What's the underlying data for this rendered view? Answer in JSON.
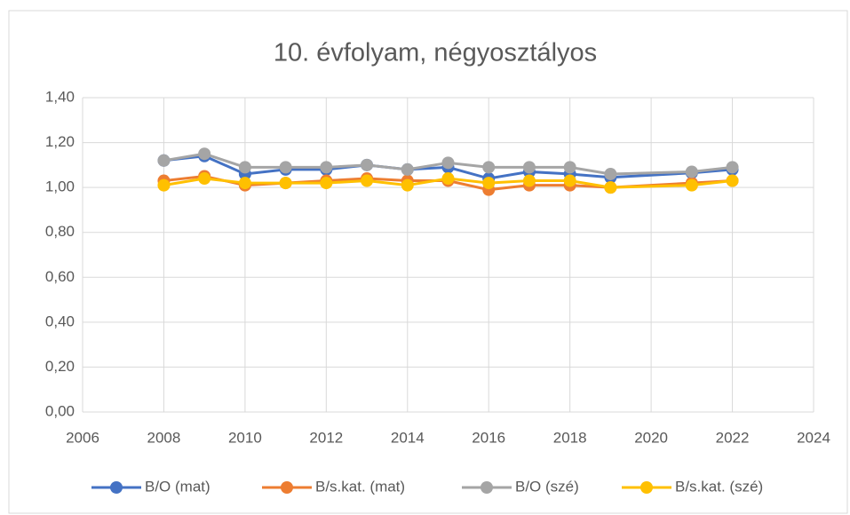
{
  "chart_data": {
    "type": "line",
    "title": "10. évfolyam, négyosztályos",
    "x": [
      2008,
      2009,
      2010,
      2011,
      2012,
      2013,
      2014,
      2015,
      2016,
      2017,
      2018,
      2019,
      2021,
      2022
    ],
    "series": [
      {
        "name": "B/O (mat)",
        "color": "#4472c4",
        "values": [
          1.12,
          1.14,
          1.06,
          1.08,
          1.08,
          1.1,
          1.08,
          1.09,
          1.04,
          1.07,
          1.06,
          1.045,
          1.065,
          1.08
        ]
      },
      {
        "name": "B/s.kat. (mat)",
        "color": "#ed7d31",
        "values": [
          1.03,
          1.05,
          1.01,
          1.02,
          1.03,
          1.04,
          1.03,
          1.03,
          0.99,
          1.01,
          1.01,
          1.0,
          1.02,
          1.03
        ]
      },
      {
        "name": "B/O (szé)",
        "color": "#a5a5a5",
        "values": [
          1.12,
          1.15,
          1.09,
          1.09,
          1.09,
          1.1,
          1.08,
          1.11,
          1.09,
          1.09,
          1.09,
          1.06,
          1.07,
          1.09
        ]
      },
      {
        "name": "B/s.kat. (szé)",
        "color": "#ffc000",
        "values": [
          1.01,
          1.04,
          1.02,
          1.02,
          1.02,
          1.03,
          1.01,
          1.04,
          1.02,
          1.03,
          1.03,
          1.0,
          1.01,
          1.03
        ]
      }
    ],
    "xlim": [
      2006,
      2024
    ],
    "xticks": [
      2006,
      2008,
      2010,
      2012,
      2014,
      2016,
      2018,
      2020,
      2022,
      2024
    ],
    "ylim": [
      0,
      1.4
    ],
    "yticks": [
      {
        "value": 0,
        "label": "0,00"
      },
      {
        "value": 0.2,
        "label": "0,20"
      },
      {
        "value": 0.4,
        "label": "0,40"
      },
      {
        "value": 0.6,
        "label": "0,60"
      },
      {
        "value": 0.8,
        "label": "0,80"
      },
      {
        "value": 1.0,
        "label": "1,00"
      },
      {
        "value": 1.2,
        "label": "1,20"
      },
      {
        "value": 1.4,
        "label": "1,40"
      }
    ],
    "grid": true,
    "legend": "bottom"
  }
}
